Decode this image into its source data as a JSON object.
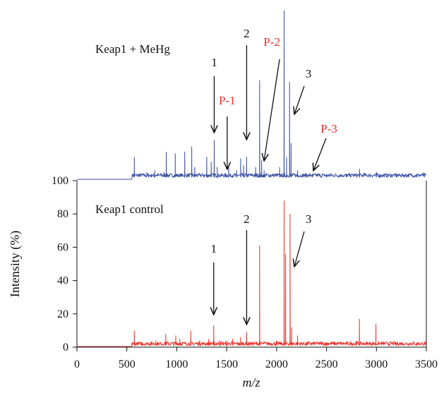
{
  "chart_data": {
    "type": "line",
    "xlabel": "m/z",
    "ylabel": "Intensity (%)",
    "xlim": [
      0,
      3500
    ],
    "ylim": [
      0,
      100
    ],
    "x_ticks": [
      "0",
      "500",
      "1000",
      "1500",
      "2000",
      "2500",
      "3000",
      "3500"
    ],
    "y_ticks": [
      "0",
      "20",
      "40",
      "60",
      "80",
      "100"
    ],
    "grid": false,
    "colors": {
      "treated": "#3a4fa3",
      "control": "#e8312a",
      "red_label": "#e8312a"
    },
    "panels": [
      {
        "name": "Keap1 + MeHg",
        "color": "#3a4fa3",
        "baseline": 2,
        "peaks": [
          {
            "x": 575,
            "y": 14
          },
          {
            "x": 700,
            "y": 5
          },
          {
            "x": 780,
            "y": 6
          },
          {
            "x": 870,
            "y": 5
          },
          {
            "x": 895,
            "y": 17
          },
          {
            "x": 985,
            "y": 16
          },
          {
            "x": 1080,
            "y": 17
          },
          {
            "x": 1150,
            "y": 20
          },
          {
            "x": 1180,
            "y": 8
          },
          {
            "x": 1300,
            "y": 14
          },
          {
            "x": 1345,
            "y": 11
          },
          {
            "x": 1375,
            "y": 24
          },
          {
            "x": 1405,
            "y": 8
          },
          {
            "x": 1490,
            "y": 4
          },
          {
            "x": 1520,
            "y": 8
          },
          {
            "x": 1600,
            "y": 6
          },
          {
            "x": 1640,
            "y": 13
          },
          {
            "x": 1670,
            "y": 9
          },
          {
            "x": 1700,
            "y": 14
          },
          {
            "x": 1790,
            "y": 8
          },
          {
            "x": 1830,
            "y": 59
          },
          {
            "x": 1850,
            "y": 12
          },
          {
            "x": 1875,
            "y": 6
          },
          {
            "x": 2030,
            "y": 8
          },
          {
            "x": 2075,
            "y": 100
          },
          {
            "x": 2100,
            "y": 14
          },
          {
            "x": 2130,
            "y": 58
          },
          {
            "x": 2145,
            "y": 22
          },
          {
            "x": 2210,
            "y": 6
          },
          {
            "x": 2290,
            "y": 4
          },
          {
            "x": 2360,
            "y": 3
          },
          {
            "x": 2500,
            "y": 4
          },
          {
            "x": 2700,
            "y": 4
          },
          {
            "x": 2830,
            "y": 7
          },
          {
            "x": 3000,
            "y": 5
          },
          {
            "x": 3200,
            "y": 4
          },
          {
            "x": 3400,
            "y": 4
          },
          {
            "x": 3480,
            "y": 3
          }
        ]
      },
      {
        "name": "Keap1 control",
        "color": "#e8312a",
        "baseline": 1,
        "peaks": [
          {
            "x": 575,
            "y": 10
          },
          {
            "x": 650,
            "y": 3
          },
          {
            "x": 740,
            "y": 3
          },
          {
            "x": 790,
            "y": 4
          },
          {
            "x": 890,
            "y": 8
          },
          {
            "x": 990,
            "y": 7
          },
          {
            "x": 1030,
            "y": 5
          },
          {
            "x": 1140,
            "y": 10
          },
          {
            "x": 1230,
            "y": 4
          },
          {
            "x": 1320,
            "y": 5
          },
          {
            "x": 1370,
            "y": 13
          },
          {
            "x": 1430,
            "y": 4
          },
          {
            "x": 1500,
            "y": 4
          },
          {
            "x": 1560,
            "y": 5
          },
          {
            "x": 1640,
            "y": 6
          },
          {
            "x": 1700,
            "y": 9
          },
          {
            "x": 1830,
            "y": 61
          },
          {
            "x": 2000,
            "y": 4
          },
          {
            "x": 2075,
            "y": 88
          },
          {
            "x": 2090,
            "y": 56
          },
          {
            "x": 2135,
            "y": 80
          },
          {
            "x": 2150,
            "y": 12
          },
          {
            "x": 2210,
            "y": 7
          },
          {
            "x": 2300,
            "y": 3
          },
          {
            "x": 2500,
            "y": 3
          },
          {
            "x": 2800,
            "y": 4
          },
          {
            "x": 2830,
            "y": 17
          },
          {
            "x": 2995,
            "y": 14
          },
          {
            "x": 3200,
            "y": 2
          },
          {
            "x": 3400,
            "y": 2
          }
        ]
      }
    ],
    "annotations": {
      "treated": [
        {
          "label": "1",
          "color": "black",
          "peak_x": 1375
        },
        {
          "label": "P-1",
          "color": "red",
          "peak_x": 1505
        },
        {
          "label": "2",
          "color": "black",
          "peak_x": 1700
        },
        {
          "label": "P-2",
          "color": "red",
          "peak_x": 1860
        },
        {
          "label": "3",
          "color": "black",
          "peak_x": 2135
        },
        {
          "label": "P-3",
          "color": "red",
          "peak_x": 2340
        }
      ],
      "control": [
        {
          "label": "1",
          "color": "black",
          "peak_x": 1370
        },
        {
          "label": "2",
          "color": "black",
          "peak_x": 1700
        },
        {
          "label": "3",
          "color": "black",
          "peak_x": 2135
        }
      ]
    }
  }
}
